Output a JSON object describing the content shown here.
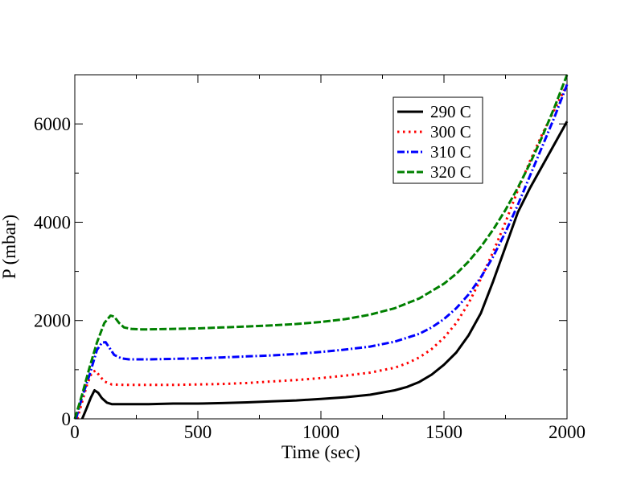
{
  "chart_data": {
    "type": "line",
    "title": "",
    "xlabel": "Time (sec)",
    "ylabel": "P (mbar)",
    "xlim": [
      0,
      2000
    ],
    "ylim": [
      0,
      7000
    ],
    "xticks": [
      0,
      500,
      1000,
      1500,
      2000
    ],
    "yticks": [
      0,
      2000,
      4000,
      6000
    ],
    "grid": false,
    "legend_position": "top-right",
    "series": [
      {
        "name": "290 C",
        "color": "#000000",
        "dash": "solid",
        "x": [
          30,
          50,
          65,
          80,
          95,
          110,
          130,
          150,
          180,
          220,
          300,
          400,
          500,
          600,
          700,
          800,
          900,
          1000,
          1100,
          1200,
          1300,
          1350,
          1400,
          1450,
          1500,
          1550,
          1600,
          1650,
          1700,
          1750,
          1800,
          1850,
          1900,
          1950,
          2000
        ],
        "y": [
          0,
          240,
          430,
          580,
          530,
          420,
          330,
          300,
          300,
          300,
          300,
          310,
          310,
          320,
          335,
          355,
          375,
          405,
          440,
          490,
          580,
          650,
          750,
          900,
          1100,
          1350,
          1700,
          2150,
          2800,
          3500,
          4200,
          4700,
          5150,
          5600,
          6050
        ]
      },
      {
        "name": "300 C",
        "color": "#ff0000",
        "dash": "dot",
        "x": [
          10,
          30,
          50,
          70,
          85,
          100,
          120,
          150,
          200,
          300,
          400,
          500,
          600,
          700,
          800,
          900,
          1000,
          1100,
          1200,
          1300,
          1350,
          1400,
          1450,
          1500,
          1550,
          1600,
          1650,
          1700,
          1750,
          1800,
          1850,
          1900,
          1950,
          2000
        ],
        "y": [
          0,
          350,
          700,
          950,
          980,
          880,
          760,
          700,
          690,
          690,
          690,
          700,
          710,
          730,
          760,
          790,
          830,
          880,
          940,
          1040,
          1130,
          1250,
          1420,
          1650,
          1950,
          2350,
          2850,
          3400,
          4000,
          4650,
          5250,
          5800,
          6300,
          6800
        ]
      },
      {
        "name": "310 C",
        "color": "#0000ff",
        "dash": "dashdot",
        "x": [
          5,
          30,
          60,
          90,
          110,
          125,
          140,
          160,
          190,
          220,
          300,
          400,
          500,
          600,
          700,
          800,
          900,
          1000,
          1100,
          1200,
          1300,
          1400,
          1450,
          1500,
          1550,
          1600,
          1650,
          1700,
          1750,
          1800,
          1850,
          1900,
          1950,
          2000
        ],
        "y": [
          0,
          450,
          900,
          1400,
          1550,
          1560,
          1450,
          1300,
          1230,
          1210,
          1210,
          1220,
          1230,
          1250,
          1270,
          1290,
          1320,
          1360,
          1410,
          1470,
          1570,
          1730,
          1860,
          2030,
          2250,
          2530,
          2880,
          3300,
          3800,
          4350,
          4950,
          5550,
          6150,
          6800
        ]
      },
      {
        "name": "320 C",
        "color": "#008000",
        "dash": "dashed",
        "x": [
          0,
          30,
          60,
          90,
          120,
          145,
          160,
          180,
          200,
          230,
          270,
          300,
          400,
          500,
          600,
          700,
          800,
          900,
          1000,
          1100,
          1200,
          1300,
          1400,
          1500,
          1550,
          1600,
          1650,
          1700,
          1750,
          1800,
          1850,
          1900,
          1950,
          2000
        ],
        "y": [
          0,
          500,
          1050,
          1550,
          1950,
          2100,
          2080,
          1950,
          1860,
          1830,
          1820,
          1820,
          1830,
          1840,
          1860,
          1880,
          1900,
          1930,
          1970,
          2030,
          2120,
          2250,
          2450,
          2750,
          2950,
          3200,
          3500,
          3850,
          4250,
          4700,
          5200,
          5750,
          6350,
          7000
        ]
      }
    ]
  }
}
